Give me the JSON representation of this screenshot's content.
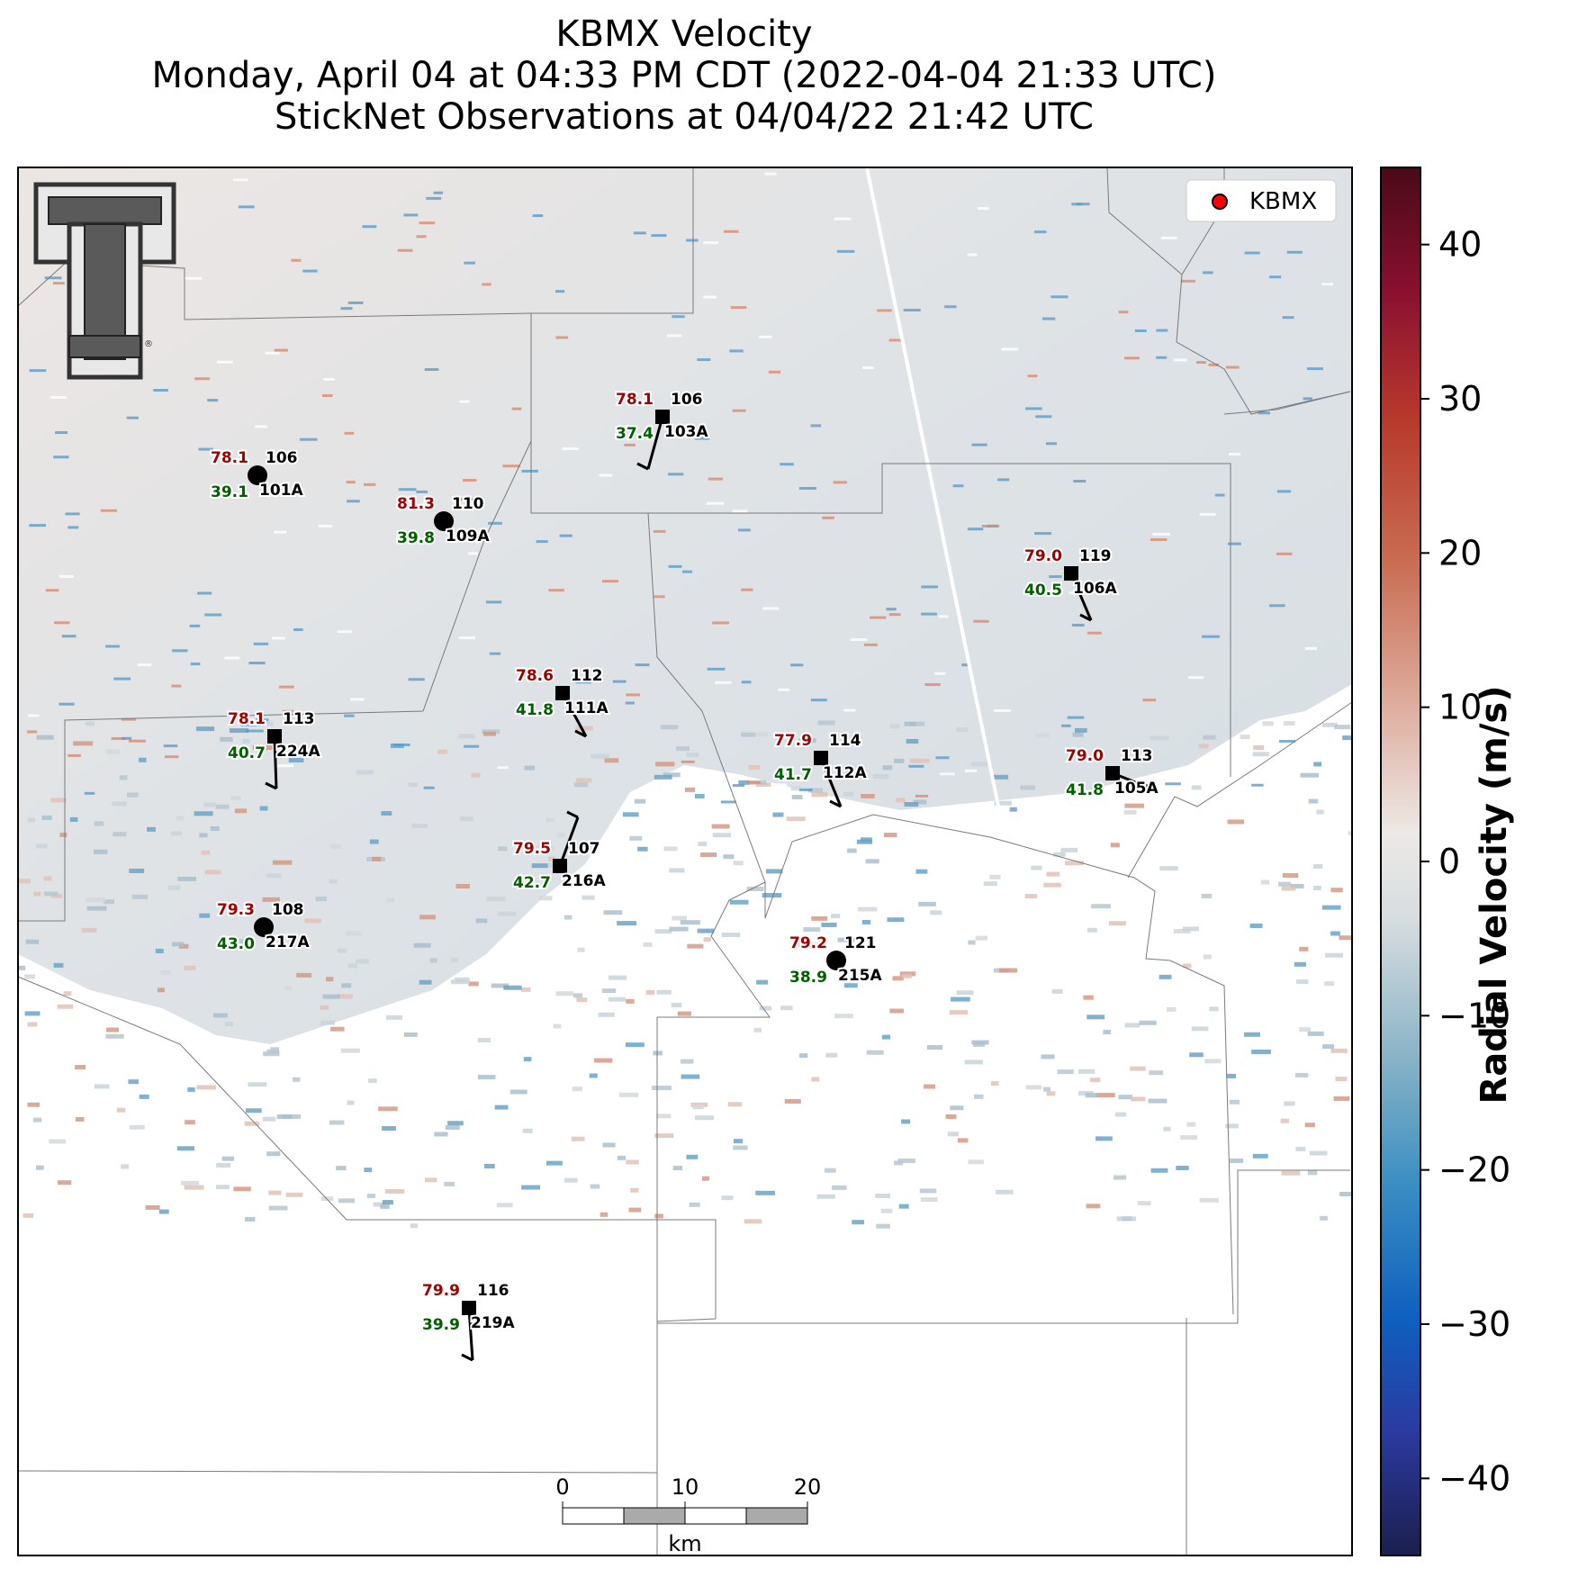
{
  "title": {
    "line1": "KBMX Velocity",
    "line2": "Monday, April 04 at 04:33 PM CDT (2022-04-04 21:33 UTC)",
    "line3": "StickNet Observations at 04/04/22 21:42 UTC"
  },
  "legend": {
    "label": "KBMX",
    "marker_color": "#ff0000"
  },
  "logo": {
    "name": "texas-tech-double-t-logo",
    "registered_mark": "®"
  },
  "colorbar": {
    "label": "Radial Velocity (m/s)",
    "ticks": [
      "40",
      "30",
      "20",
      "10",
      "0",
      "−10",
      "−20",
      "−30",
      "−40"
    ],
    "range": [
      -45,
      45
    ],
    "colors": [
      "#1b1f4d",
      "#2b3aa0",
      "#0f5fbf",
      "#3b8fc2",
      "#8ab4c6",
      "#d8dde0",
      "#ece9e6",
      "#dca898",
      "#c86a50",
      "#b8382c",
      "#8a1030",
      "#4a0a18"
    ]
  },
  "scalebar": {
    "ticks": [
      "0",
      "10",
      "20"
    ],
    "unit": "km"
  },
  "stations": [
    {
      "id": "101A",
      "temp": "78.1",
      "dir": "106",
      "speed": "39.1",
      "marker": "circle"
    },
    {
      "id": "109A",
      "temp": "81.3",
      "dir": "110",
      "speed": "39.8",
      "marker": "circle"
    },
    {
      "id": "103A",
      "temp": "78.1",
      "dir": "106",
      "speed": "37.4",
      "marker": "square"
    },
    {
      "id": "106A",
      "temp": "79.0",
      "dir": "119",
      "speed": "40.5",
      "marker": "square"
    },
    {
      "id": "224A",
      "temp": "78.1",
      "dir": "113",
      "speed": "40.7",
      "marker": "square"
    },
    {
      "id": "111A",
      "temp": "78.6",
      "dir": "112",
      "speed": "41.8",
      "marker": "square"
    },
    {
      "id": "112A",
      "temp": "77.9",
      "dir": "114",
      "speed": "41.7",
      "marker": "square"
    },
    {
      "id": "105A",
      "temp": "79.0",
      "dir": "113",
      "speed": "41.8",
      "marker": "square"
    },
    {
      "id": "216A",
      "temp": "79.5",
      "dir": "107",
      "speed": "42.7",
      "marker": "square"
    },
    {
      "id": "217A",
      "temp": "79.3",
      "dir": "108",
      "speed": "43.0",
      "marker": "circle"
    },
    {
      "id": "215A",
      "temp": "79.2",
      "dir": "121",
      "speed": "38.9",
      "marker": "circle"
    },
    {
      "id": "219A",
      "temp": "79.9",
      "dir": "116",
      "speed": "39.9",
      "marker": "square"
    }
  ],
  "colors": {
    "temp": "#a00000",
    "speed": "#006000",
    "text": "#000000"
  }
}
